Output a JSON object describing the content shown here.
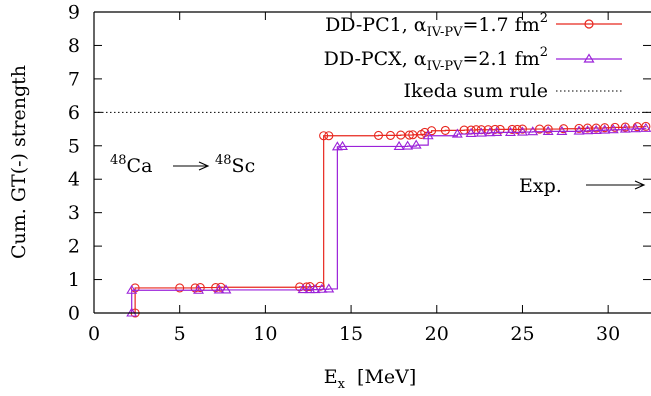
{
  "chart_data": {
    "type": "line",
    "title": "",
    "ylabel": "Cum. GT(-) strength",
    "xlabel": {
      "main": "E",
      "sub": "x",
      "unit": "[MeV]"
    },
    "xlim": [
      0,
      32.5
    ],
    "ylim": [
      0,
      9
    ],
    "xticks": [
      0,
      5,
      10,
      15,
      20,
      25,
      30
    ],
    "yticks": [
      0,
      1,
      2,
      3,
      4,
      5,
      6,
      7,
      8,
      9
    ],
    "grid": false,
    "legend_position": "top-right",
    "series": [
      {
        "name": "DD-PC1, α_IV-PV=1.7 fm^2",
        "legend_label": {
          "pre": "DD-PC1, α",
          "sub": "IV-PV",
          "post": "=1.7 fm",
          "sup": "2"
        },
        "color": "#e8271f",
        "marker": "circle",
        "x": [
          2.4,
          2.4,
          5.0,
          5.9,
          6.2,
          7.1,
          7.4,
          12.0,
          12.4,
          12.6,
          13.2,
          13.4,
          13.7,
          16.6,
          17.3,
          17.9,
          18.4,
          18.6,
          19.1,
          19.3,
          19.7,
          20.5,
          21.6,
          22.0,
          22.3,
          22.6,
          23.0,
          23.4,
          23.7,
          24.4,
          24.7,
          25.0,
          26.0,
          26.5,
          27.4,
          28.3,
          28.8,
          29.3,
          29.8,
          30.4,
          31.0,
          31.7,
          32.2
        ],
        "y": [
          0.0,
          0.75,
          0.75,
          0.75,
          0.76,
          0.76,
          0.77,
          0.78,
          0.78,
          0.79,
          0.8,
          5.3,
          5.3,
          5.31,
          5.31,
          5.32,
          5.32,
          5.33,
          5.34,
          5.4,
          5.45,
          5.46,
          5.47,
          5.47,
          5.48,
          5.48,
          5.48,
          5.49,
          5.49,
          5.49,
          5.49,
          5.5,
          5.5,
          5.5,
          5.51,
          5.52,
          5.53,
          5.53,
          5.54,
          5.55,
          5.56,
          5.57,
          5.58
        ]
      },
      {
        "name": "DD-PCX, α_IV-PV=2.1 fm^2",
        "legend_label": {
          "pre": "DD-PCX, α",
          "sub": "IV-PV",
          "post": "=2.1 fm",
          "sup": "2"
        },
        "color": "#9b22d9",
        "marker": "triangle",
        "x": [
          2.2,
          2.2,
          6.1,
          7.3,
          7.7,
          12.2,
          12.6,
          12.9,
          13.3,
          13.7,
          14.2,
          14.5,
          17.8,
          18.3,
          18.8,
          19.5,
          21.2,
          22.0,
          22.6,
          23.1,
          23.5,
          24.3,
          25.0,
          25.6,
          26.5,
          27.3,
          28.3,
          28.8,
          29.3,
          29.8,
          30.3,
          31.0,
          31.6,
          32.2
        ],
        "y": [
          0.0,
          0.68,
          0.68,
          0.69,
          0.69,
          0.7,
          0.7,
          0.7,
          0.71,
          0.72,
          4.97,
          4.98,
          4.98,
          4.99,
          5.02,
          5.3,
          5.35,
          5.37,
          5.38,
          5.39,
          5.4,
          5.4,
          5.41,
          5.42,
          5.43,
          5.43,
          5.44,
          5.45,
          5.46,
          5.47,
          5.48,
          5.5,
          5.51,
          5.52
        ]
      }
    ],
    "reference_line": {
      "name": "Ikeda sum rule",
      "y": 6.0,
      "style": "dotted",
      "color": "#000000"
    },
    "annotations": {
      "reaction": {
        "mass_left": "48",
        "element_left": "Ca",
        "mass_right": "48",
        "element_right": "Sc",
        "arrow": "→"
      },
      "experiment": {
        "label": "Exp.",
        "arrow": "→"
      }
    },
    "colors": {
      "axis": "#000000",
      "background": "#ffffff"
    }
  }
}
